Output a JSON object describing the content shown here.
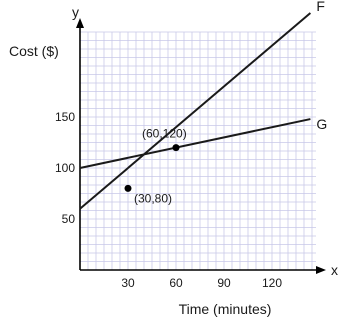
{
  "chart_data": {
    "type": "line",
    "title": "",
    "xlabel": "Time (minutes)",
    "ylabel": "Cost ($)",
    "x_axis_letter": "x",
    "y_axis_letter": "y",
    "xlim": [
      0,
      150
    ],
    "ylim": [
      0,
      170
    ],
    "x_ticks": [
      30,
      60,
      90,
      120
    ],
    "y_ticks": [
      50,
      100,
      150
    ],
    "grid": true,
    "series": [
      {
        "name": "F",
        "slope": 1.3333,
        "intercept": 60,
        "x_end": 144
      },
      {
        "name": "G",
        "slope": 0.3333,
        "intercept": 100,
        "x_end": 144
      }
    ],
    "points": [
      {
        "x": 60,
        "y": 120,
        "label": "(60,120)"
      },
      {
        "x": 30,
        "y": 80,
        "label": "(30,80)"
      }
    ]
  }
}
